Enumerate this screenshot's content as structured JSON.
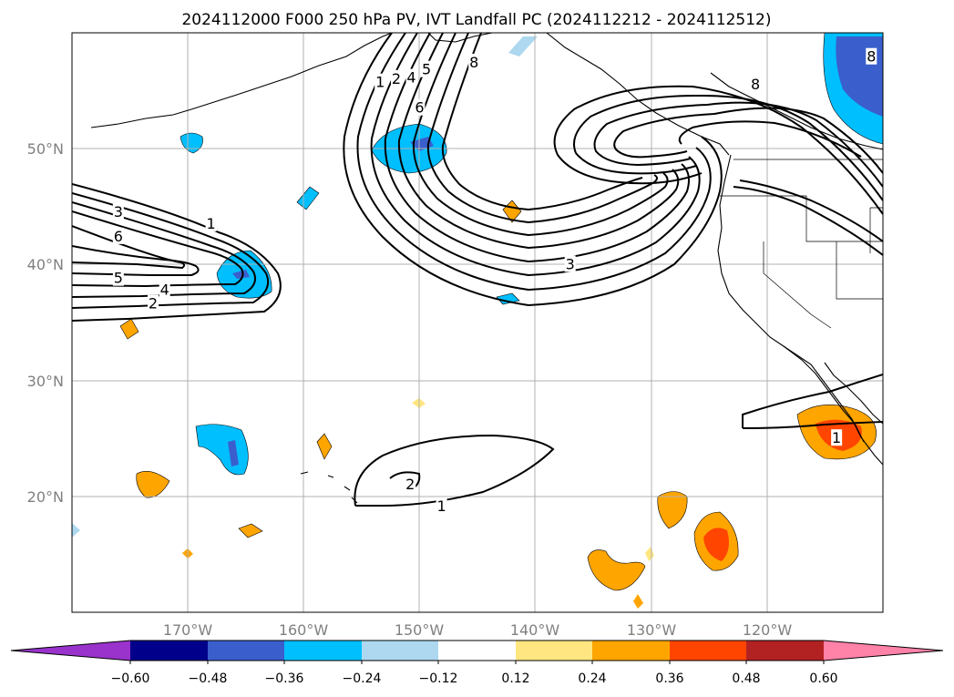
{
  "title": "2024112000 F000 250 hPa PV, IVT Landfall PC (2024112212 - 2024112512)",
  "map": {
    "lon_range": [
      -180,
      -110
    ],
    "lat_range": [
      10,
      60
    ],
    "grid": true,
    "lon_ticks": [
      {
        "value": -170,
        "label": "170°W"
      },
      {
        "value": -160,
        "label": "160°W"
      },
      {
        "value": -150,
        "label": "150°W"
      },
      {
        "value": -140,
        "label": "140°W"
      },
      {
        "value": -130,
        "label": "130°W"
      },
      {
        "value": -120,
        "label": "120°W"
      }
    ],
    "lat_ticks": [
      {
        "value": 20,
        "label": "20°N"
      },
      {
        "value": 30,
        "label": "30°N"
      },
      {
        "value": 40,
        "label": "40°N"
      },
      {
        "value": 50,
        "label": "50°N"
      }
    ],
    "contour_labels": [
      {
        "text": "3",
        "lon": -176.0,
        "lat": 44.5
      },
      {
        "text": "6",
        "lon": -176.0,
        "lat": 42.4
      },
      {
        "text": "5",
        "lon": -176.0,
        "lat": 38.8
      },
      {
        "text": "4",
        "lon": -172.0,
        "lat": 37.8
      },
      {
        "text": "2",
        "lon": -173.0,
        "lat": 36.6
      },
      {
        "text": "1",
        "lon": -168.0,
        "lat": 43.5
      },
      {
        "text": "1",
        "lon": -153.4,
        "lat": 55.7
      },
      {
        "text": "2",
        "lon": -152.0,
        "lat": 56.0
      },
      {
        "text": "4",
        "lon": -150.7,
        "lat": 56.1
      },
      {
        "text": "5",
        "lon": -149.4,
        "lat": 56.8
      },
      {
        "text": "6",
        "lon": -150.0,
        "lat": 53.5
      },
      {
        "text": "8",
        "lon": -145.3,
        "lat": 57.4
      },
      {
        "text": "3",
        "lon": -137.0,
        "lat": 40.0
      },
      {
        "text": "8",
        "lon": -121.0,
        "lat": 55.5
      },
      {
        "text": "8",
        "lon": -111.0,
        "lat": 57.9
      },
      {
        "text": "1",
        "lon": -114.0,
        "lat": 25.0
      },
      {
        "text": "2",
        "lon": -150.8,
        "lat": 21.0
      },
      {
        "text": "1",
        "lon": -148.1,
        "lat": 19.1
      }
    ]
  },
  "colorbar": {
    "ticks": [
      "−0.60",
      "−0.48",
      "−0.36",
      "−0.24",
      "−0.12",
      "0.12",
      "0.24",
      "0.36",
      "0.48",
      "0.60"
    ],
    "colors": [
      "#9933cc",
      "#00008b",
      "#3a5fcd",
      "#00bfff",
      "#add8f0",
      "#ffffff",
      "#ffe680",
      "#ffa500",
      "#ff4500",
      "#b22222",
      "#ff82a9"
    ]
  },
  "legend": {}
}
